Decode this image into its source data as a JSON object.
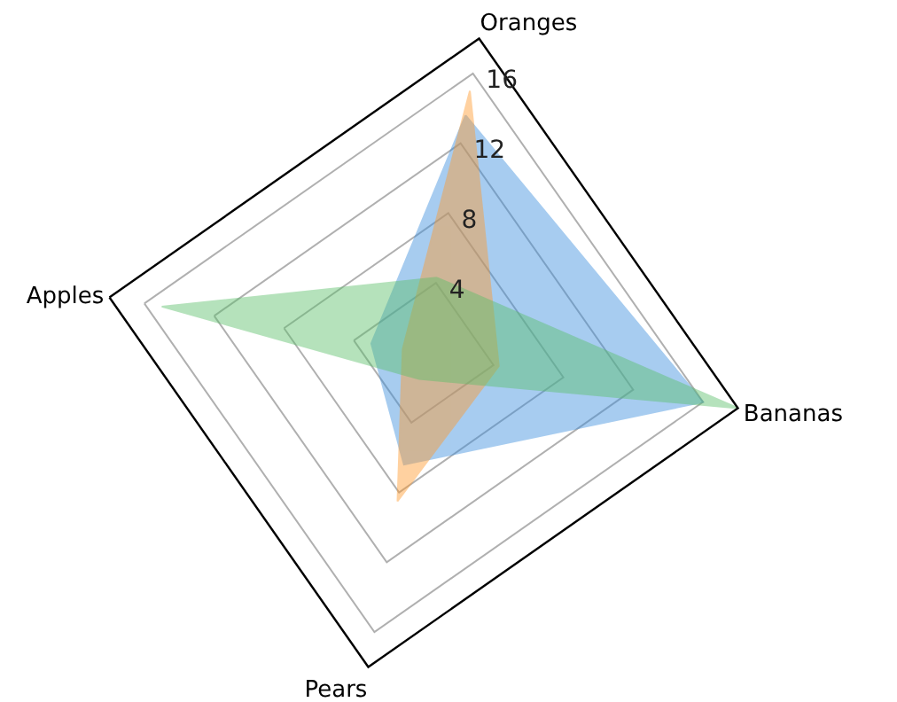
{
  "chart_data": {
    "type": "radar",
    "categories": [
      "Oranges",
      "Bananas",
      "Pears",
      "Apples"
    ],
    "series": [
      {
        "color": "#3d8fdd",
        "values": [
          13.6,
          16,
          6.4,
          3
        ]
      },
      {
        "color": "#ff9a2e",
        "values": [
          15,
          4.3,
          8.5,
          1.2
        ]
      },
      {
        "color": "#5cbf6a",
        "values": [
          4.3,
          18,
          1.5,
          15
        ]
      }
    ],
    "ylim": [
      0,
      18
    ],
    "yticks": [
      4,
      8,
      12,
      16
    ],
    "grid": true
  }
}
